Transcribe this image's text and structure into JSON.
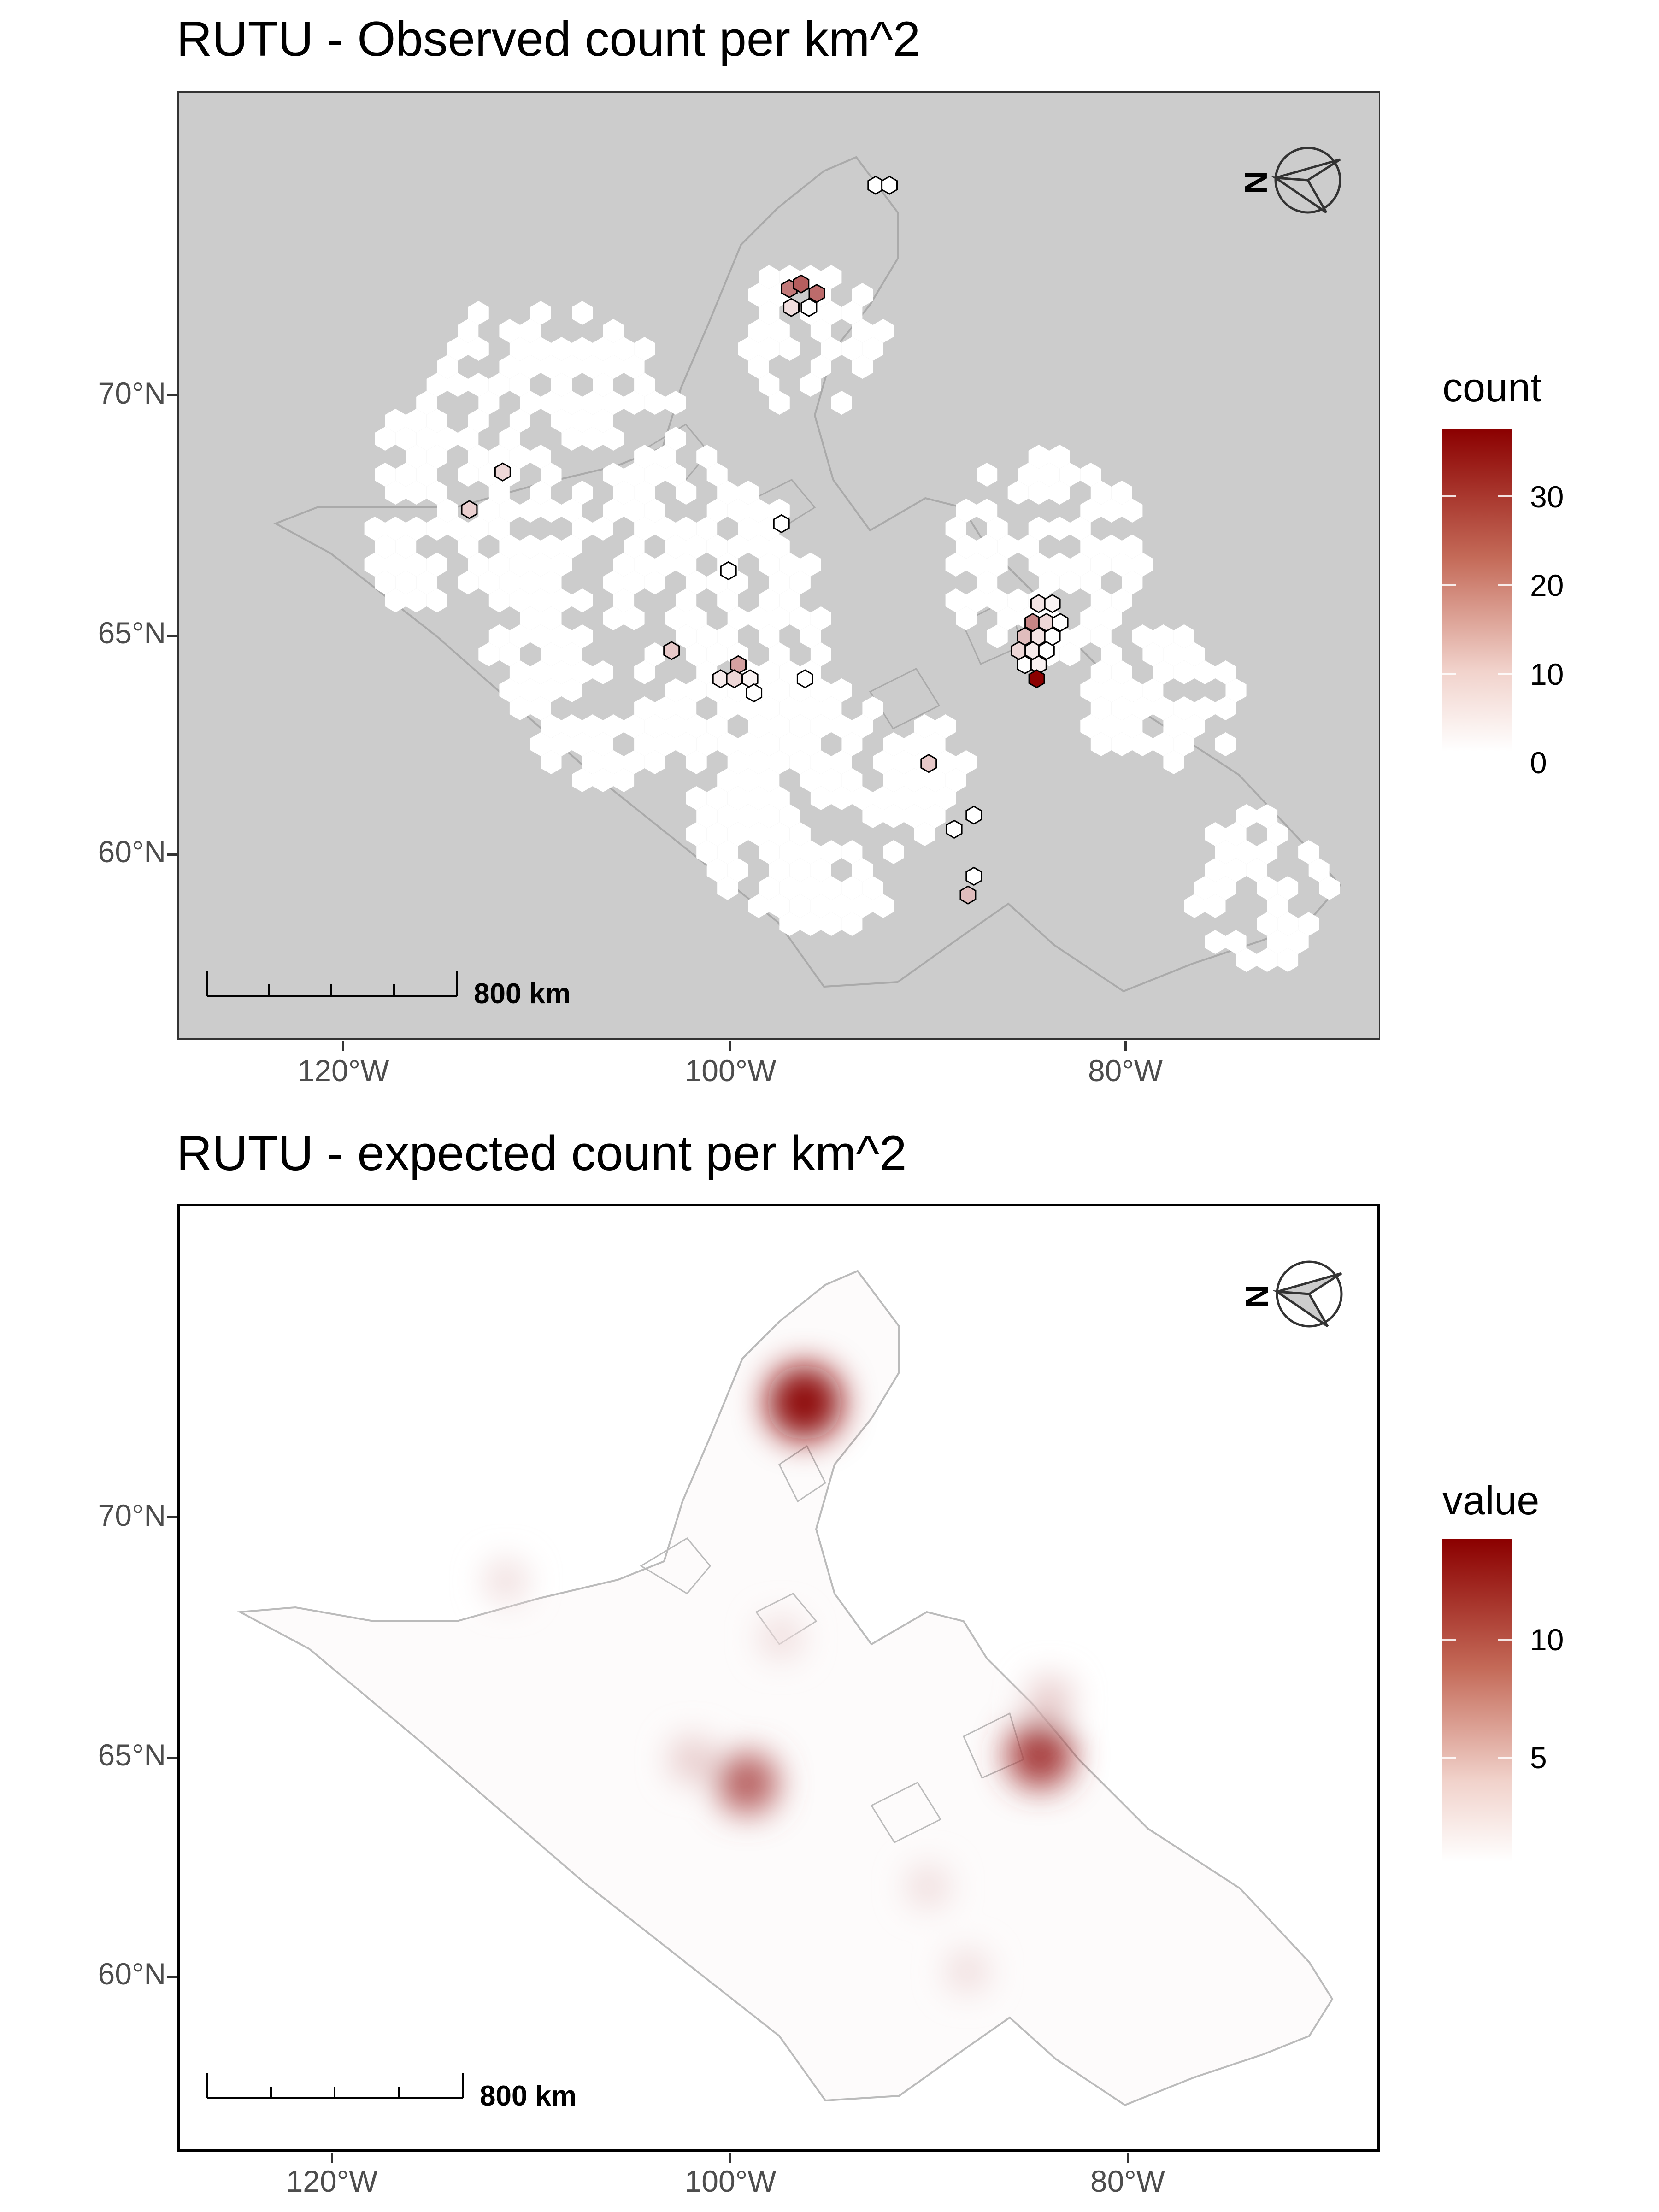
{
  "panels": [
    {
      "title": "RUTU - Observed count per km^2",
      "legend": {
        "title": "count",
        "labels": [
          "30",
          "20",
          "10",
          "0"
        ],
        "range": [
          0,
          38
        ],
        "colors": [
          "#ffffff",
          "#8b0000"
        ]
      },
      "y_ticks": [
        "70°N",
        "65°N",
        "60°N"
      ],
      "x_ticks": [
        "120°W",
        "100°W",
        "80°W"
      ],
      "scale_bar": "800 km",
      "north_arrow": "N",
      "background": "#cccccc",
      "icon": "north-arrow-icon"
    },
    {
      "title": "RUTU - expected count per km^2",
      "legend": {
        "title": "value",
        "labels": [
          "10",
          "5"
        ],
        "range": [
          0,
          14.5
        ],
        "colors": [
          "#ffffff",
          "#8b0000"
        ]
      },
      "y_ticks": [
        "70°N",
        "65°N",
        "60°N"
      ],
      "x_ticks": [
        "120°W",
        "100°W",
        "80°W"
      ],
      "scale_bar": "800 km",
      "north_arrow": "N",
      "background": "#ffffff",
      "icon": "north-arrow-icon"
    }
  ],
  "observed_cells": [
    {
      "lon": -97.0,
      "lat": 72.3,
      "count": 20
    },
    {
      "lon": -96.4,
      "lat": 72.4,
      "count": 24
    },
    {
      "lon": -95.6,
      "lat": 72.2,
      "count": 22
    },
    {
      "lon": -96.9,
      "lat": 71.9,
      "count": 5
    },
    {
      "lon": -96.0,
      "lat": 71.9,
      "count": 0
    },
    {
      "lon": -92.6,
      "lat": 74.5,
      "count": 0
    },
    {
      "lon": -91.9,
      "lat": 74.5,
      "count": 0
    },
    {
      "lon": -111.6,
      "lat": 68.4,
      "count": 6
    },
    {
      "lon": -113.3,
      "lat": 67.6,
      "count": 7
    },
    {
      "lon": -97.4,
      "lat": 67.3,
      "count": 0
    },
    {
      "lon": -100.1,
      "lat": 66.3,
      "count": 0
    },
    {
      "lon": -103.0,
      "lat": 64.6,
      "count": 8
    },
    {
      "lon": -100.5,
      "lat": 64.0,
      "count": 3
    },
    {
      "lon": -99.6,
      "lat": 64.3,
      "count": 14
    },
    {
      "lon": -99.8,
      "lat": 64.0,
      "count": 6
    },
    {
      "lon": -99.0,
      "lat": 64.0,
      "count": 2
    },
    {
      "lon": -98.8,
      "lat": 63.7,
      "count": 0
    },
    {
      "lon": -96.2,
      "lat": 64.0,
      "count": 0
    },
    {
      "lon": -89.9,
      "lat": 62.2,
      "count": 8
    },
    {
      "lon": -88.6,
      "lat": 60.8,
      "count": 0
    },
    {
      "lon": -87.6,
      "lat": 61.1,
      "count": 0
    },
    {
      "lon": -87.6,
      "lat": 59.8,
      "count": 0
    },
    {
      "lon": -87.9,
      "lat": 59.4,
      "count": 10
    },
    {
      "lon": -84.3,
      "lat": 65.6,
      "count": 4
    },
    {
      "lon": -83.6,
      "lat": 65.6,
      "count": 2
    },
    {
      "lon": -84.6,
      "lat": 65.2,
      "count": 18
    },
    {
      "lon": -83.9,
      "lat": 65.2,
      "count": 6
    },
    {
      "lon": -83.2,
      "lat": 65.2,
      "count": 0
    },
    {
      "lon": -85.0,
      "lat": 64.9,
      "count": 10
    },
    {
      "lon": -84.3,
      "lat": 64.9,
      "count": 4
    },
    {
      "lon": -83.6,
      "lat": 64.9,
      "count": 0
    },
    {
      "lon": -85.3,
      "lat": 64.6,
      "count": 6
    },
    {
      "lon": -84.6,
      "lat": 64.6,
      "count": 3
    },
    {
      "lon": -83.9,
      "lat": 64.6,
      "count": 0
    },
    {
      "lon": -85.0,
      "lat": 64.3,
      "count": 0
    },
    {
      "lon": -84.3,
      "lat": 64.3,
      "count": 2
    },
    {
      "lon": -84.4,
      "lat": 64.0,
      "count": 38
    }
  ],
  "expected_hotspots": [
    {
      "lon": -96.3,
      "lat": 72.3,
      "value": 14
    },
    {
      "lon": -99.2,
      "lat": 64.2,
      "value": 9
    },
    {
      "lon": -84.3,
      "lat": 64.8,
      "value": 11
    },
    {
      "lon": -83.8,
      "lat": 66.0,
      "value": 3
    },
    {
      "lon": -102.0,
      "lat": 64.7,
      "value": 3
    },
    {
      "lon": -111.5,
      "lat": 68.5,
      "value": 2
    },
    {
      "lon": -97.5,
      "lat": 67.3,
      "value": 2
    },
    {
      "lon": -88.0,
      "lat": 60.2,
      "value": 2
    },
    {
      "lon": -90.0,
      "lat": 62.0,
      "value": 2
    }
  ]
}
